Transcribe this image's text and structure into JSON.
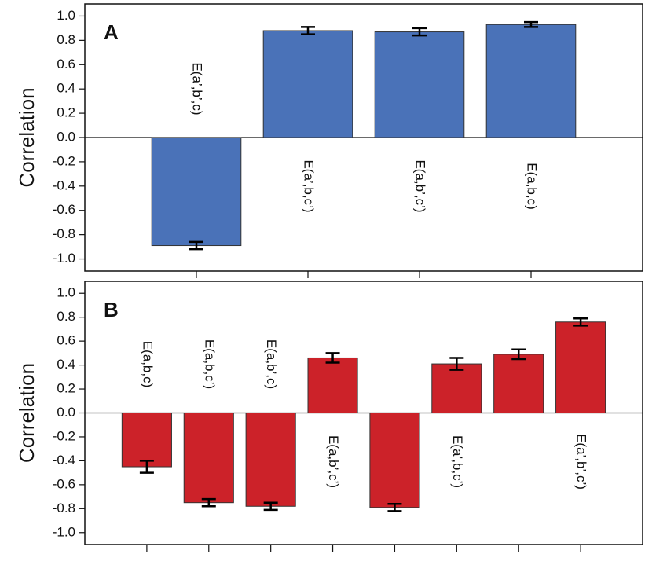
{
  "chart_data": [
    {
      "type": "bar",
      "panel_label": "A",
      "ylabel": "Correlation",
      "categories": [
        "E(a’,b’,c)",
        "E(a’,b,c’)",
        "E(a,b’,c’)",
        "E(a,b,c)"
      ],
      "values": [
        -0.89,
        0.88,
        0.87,
        0.93
      ],
      "errors": [
        0.03,
        0.03,
        0.03,
        0.02
      ],
      "color": "#4a72b8",
      "ylim": [
        -1.1,
        1.1
      ],
      "yticks": [
        {
          "value": 1,
          "label": "1.0"
        },
        0.8,
        0.6,
        0.4,
        0.2,
        {
          "value": 0,
          "label": "0.0"
        },
        -0.2,
        -0.4,
        -0.6,
        -0.8,
        {
          "value": -1,
          "label": "-1.0"
        }
      ]
    },
    {
      "type": "bar",
      "panel_label": "B",
      "ylabel": "Correlation",
      "categories": [
        "E(a,b,c)",
        "E(a,b,c’)",
        "E(a,b’,c)",
        "E(a,b’,c’)",
        null,
        "E(a’,b,c’)",
        null,
        "E(a’,b’,c’)"
      ],
      "values": [
        -0.45,
        -0.75,
        -0.78,
        0.46,
        -0.79,
        0.41,
        0.49,
        0.76
      ],
      "errors": [
        0.05,
        0.03,
        0.03,
        0.04,
        0.03,
        0.05,
        0.04,
        0.03
      ],
      "color": "#cc2229",
      "ylim": [
        -1.1,
        1.1
      ],
      "yticks": [
        {
          "value": 1,
          "label": "1.0"
        },
        0.8,
        0.6,
        0.4,
        0.2,
        {
          "value": 0,
          "label": "0.0"
        },
        -0.2,
        -0.4,
        -0.6,
        -0.8,
        {
          "value": -1,
          "label": "-1.0"
        }
      ]
    }
  ]
}
